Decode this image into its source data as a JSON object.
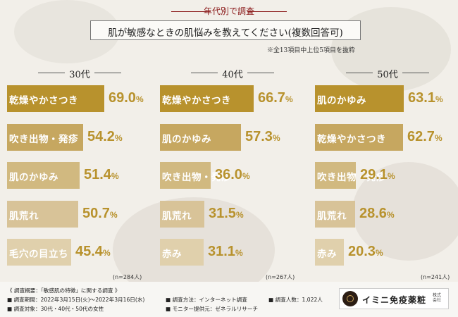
{
  "header": {
    "kicker": "年代別で調査",
    "title": "肌が敏感なときの肌悩みを教えてください(複数回答可)",
    "note": "※全13項目中上位5項目を抜粋"
  },
  "colors": {
    "accent": "#8b1a1a",
    "value": "#b8922d",
    "bar_shades": [
      "#b8922d",
      "#c6a760",
      "#d1b980",
      "#d8c398",
      "#e0d0ac"
    ]
  },
  "chart_data": [
    {
      "type": "bar",
      "title": "30代",
      "categories": [
        "乾燥やかさつき",
        "吹き出物・発疹",
        "肌のかゆみ",
        "肌荒れ",
        "毛穴の目立ち"
      ],
      "values": [
        69.0,
        54.2,
        51.4,
        50.7,
        45.4
      ],
      "value_labels": [
        "69.0",
        "54.2",
        "51.4",
        "50.7",
        "45.4"
      ],
      "unit": "%",
      "n": "(n=284人)"
    },
    {
      "type": "bar",
      "title": "40代",
      "categories": [
        "乾燥やかさつき",
        "肌のかゆみ",
        "吹き出物・発疹",
        "肌荒れ",
        "赤み"
      ],
      "values": [
        66.7,
        57.3,
        36.0,
        31.5,
        31.1
      ],
      "value_labels": [
        "66.7",
        "57.3",
        "36.0",
        "31.5",
        "31.1"
      ],
      "unit": "%",
      "n": "(n=267人)"
    },
    {
      "type": "bar",
      "title": "50代",
      "categories": [
        "肌のかゆみ",
        "乾燥やかさつき",
        "吹き出物・発疹",
        "肌荒れ",
        "赤み"
      ],
      "values": [
        63.1,
        62.7,
        29.1,
        28.6,
        20.3
      ],
      "value_labels": [
        "63.1",
        "62.7",
        "29.1",
        "28.6",
        "20.3"
      ],
      "unit": "%",
      "n": "(n=241人)"
    }
  ],
  "footer": {
    "overview": "《 調査概要：「敏感肌の特徴」に関する調査 》",
    "period": "■ 調査期間：2022年3月15日(火)～2022年3月16日(水)",
    "method": "■ 調査方法：インターネット調査",
    "count": "■ 調査人数：1,022人",
    "target": "■ 調査対象：30代・40代・50代の女性",
    "provider": "■ モニター提供元：ゼネラルリサーチ"
  },
  "logo": {
    "name": "イミニ免疫薬粧",
    "sub": "株式会社"
  }
}
